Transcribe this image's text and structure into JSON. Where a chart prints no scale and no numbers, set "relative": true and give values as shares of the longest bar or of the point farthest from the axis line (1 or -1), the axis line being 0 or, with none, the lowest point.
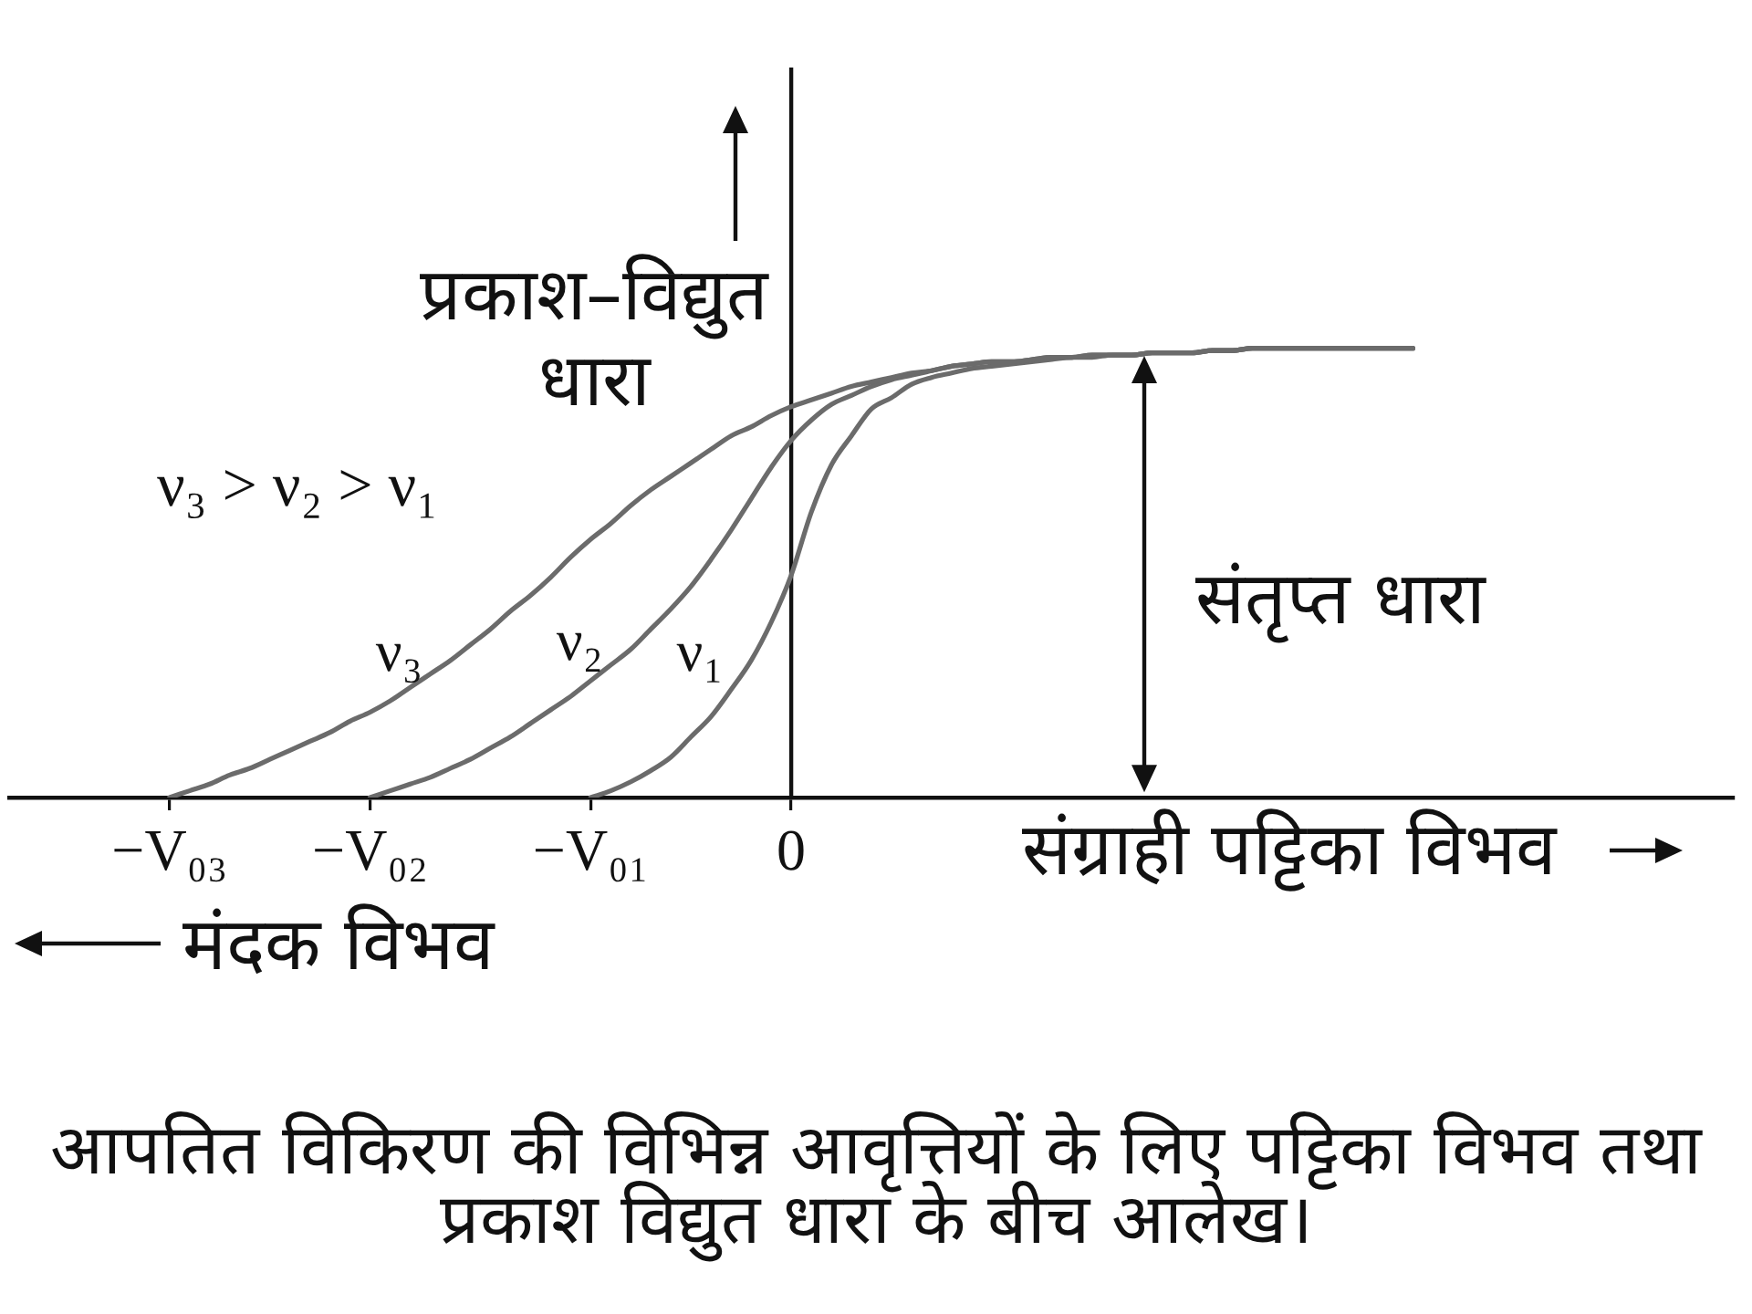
{
  "chart_data": {
    "type": "line",
    "xlabel": "संग्राही पट्टिका विभव",
    "ylabel": "प्रकाश–विद्युत धारा",
    "relative": true,
    "marker": "none",
    "categories": [
      null,
      null,
      null,
      null,
      null,
      null,
      null,
      null,
      "−V₀₃",
      null,
      null,
      null,
      null,
      null,
      null,
      null,
      null,
      null,
      "−V₀₂",
      null,
      null,
      null,
      null,
      null,
      null,
      null,
      null,
      null,
      null,
      "−V₀₁",
      null,
      null,
      null,
      null,
      null,
      null,
      null,
      null,
      null,
      "0",
      null,
      null,
      null,
      null,
      null,
      null,
      null,
      null,
      null,
      null,
      null,
      null,
      null,
      null,
      null,
      null,
      null,
      null,
      null,
      null,
      null,
      null,
      null,
      null,
      null,
      null,
      null,
      null,
      null,
      null,
      null,
      null,
      null,
      null,
      null,
      null,
      null,
      null,
      null,
      null,
      null,
      null,
      null,
      null,
      null,
      null,
      null
    ],
    "series": [
      {
        "name": "ν₃",
        "color": "#6b6b6b",
        "values": [
          null,
          null,
          null,
          null,
          null,
          null,
          null,
          null,
          0,
          0.015,
          0.03,
          0.05,
          0.065,
          0.085,
          0.105,
          0.125,
          0.145,
          0.17,
          0.19,
          0.215,
          0.245,
          0.275,
          0.305,
          0.34,
          0.375,
          0.415,
          0.45,
          0.49,
          0.535,
          0.575,
          0.61,
          0.65,
          0.685,
          0.715,
          0.745,
          0.775,
          0.805,
          0.825,
          0.85,
          0.87,
          0.885,
          0.9,
          0.915,
          0.925,
          0.935,
          0.945,
          0.95,
          0.96,
          0.965,
          0.97,
          0.97,
          0.975,
          0.98,
          0.98,
          0.985,
          0.985,
          0.985,
          0.99,
          0.99,
          0.99,
          0.995,
          0.995,
          1,
          1,
          1,
          1,
          1,
          1,
          1,
          1,
          1,
          null,
          null,
          null,
          null,
          null,
          null,
          null,
          null,
          null,
          null,
          null,
          null,
          null,
          null,
          null,
          null
        ]
      },
      {
        "name": "ν₂",
        "color": "#6b6b6b",
        "values": [
          null,
          null,
          null,
          null,
          null,
          null,
          null,
          null,
          null,
          null,
          null,
          null,
          null,
          null,
          null,
          null,
          null,
          null,
          0,
          0.015,
          0.03,
          0.045,
          0.065,
          0.085,
          0.11,
          0.135,
          0.165,
          0.195,
          0.225,
          0.26,
          0.295,
          0.33,
          0.375,
          0.42,
          0.47,
          0.53,
          0.595,
          0.665,
          0.735,
          0.795,
          0.84,
          0.875,
          0.895,
          0.915,
          0.93,
          0.94,
          0.95,
          0.96,
          0.965,
          0.97,
          0.97,
          0.975,
          0.98,
          0.98,
          0.985,
          0.985,
          0.985,
          0.99,
          0.99,
          0.99,
          0.995,
          0.995,
          1,
          1,
          1,
          1,
          1,
          1,
          1,
          1,
          1,
          null,
          null,
          null,
          null,
          null,
          null,
          null,
          null,
          null,
          null,
          null,
          null,
          null,
          null,
          null,
          null
        ]
      },
      {
        "name": "ν₁",
        "color": "#6b6b6b",
        "values": [
          null,
          null,
          null,
          null,
          null,
          null,
          null,
          null,
          null,
          null,
          null,
          null,
          null,
          null,
          null,
          null,
          null,
          null,
          null,
          null,
          null,
          null,
          null,
          null,
          null,
          null,
          null,
          null,
          null,
          0,
          0.015,
          0.035,
          0.06,
          0.09,
          0.135,
          0.18,
          0.24,
          0.305,
          0.39,
          0.495,
          0.635,
          0.74,
          0.805,
          0.865,
          0.89,
          0.92,
          0.935,
          0.945,
          0.955,
          0.96,
          0.965,
          0.97,
          0.975,
          0.98,
          0.98,
          0.985,
          0.985,
          0.99,
          0.99,
          0.99,
          0.995,
          0.995,
          1,
          1,
          1,
          1,
          1,
          1,
          1,
          1,
          1,
          null,
          null,
          null,
          null,
          null,
          null,
          null,
          null,
          null,
          null,
          null,
          null,
          null,
          null,
          null,
          null
        ]
      }
    ],
    "ref_lines": [
      {
        "axis": "x",
        "value": "0",
        "color": "#111111"
      }
    ],
    "annotations": [
      "ν₃ > ν₂ > ν₁",
      "संतृप्त धारा",
      "मंदक विभव",
      "आपतित विकिरण की विभिन्न आवृत्तियों के लिए पट्टिका विभव तथा प्रकाश विद्युत धारा के बीच आलेख।"
    ]
  }
}
